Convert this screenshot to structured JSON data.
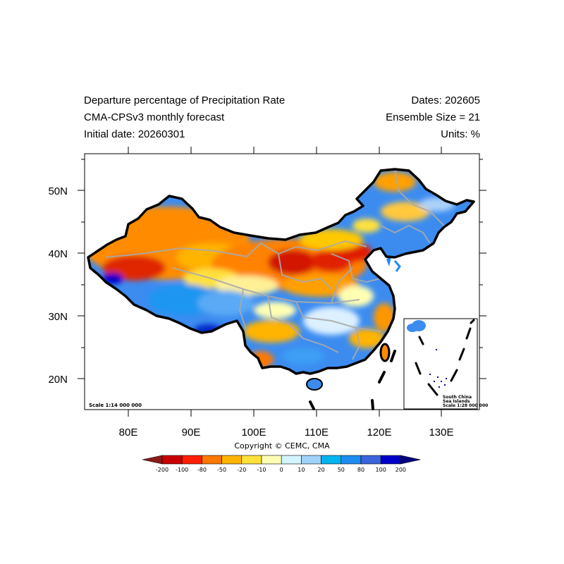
{
  "header": {
    "title_left": "Departure percentage of Precipitation Rate",
    "subtitle_left": "CMA-CPSv3 monthly forecast",
    "initial_date": "Initial date: 20260301",
    "dates": "Dates: 202605",
    "ensemble": "Ensemble Size = 21",
    "units": "Units: %"
  },
  "map": {
    "x_ticks": [
      "80E",
      "90E",
      "100E",
      "110E",
      "120E",
      "130E"
    ],
    "y_ticks": [
      "50N",
      "40N",
      "30N",
      "20N"
    ],
    "scale_label": "Scale 1:14 000 000",
    "inset": {
      "line1": "South China",
      "line2": "Sea Islands",
      "line3": "Scale 1:28 000 000"
    }
  },
  "copyright": "Copyright © CEMC, CMA",
  "colorbar": {
    "labels": [
      "-200",
      "-100",
      "-80",
      "-50",
      "-20",
      "-10",
      "0",
      "10",
      "20",
      "50",
      "80",
      "100",
      "200"
    ],
    "colors": [
      "#8b1a1a",
      "#c80000",
      "#ff1e00",
      "#ff7800",
      "#ffb400",
      "#ffe13c",
      "#ffffb4",
      "#d2f5ff",
      "#a0d2fa",
      "#00b4f0",
      "#1e8cf0",
      "#3c64dc",
      "#0000c8",
      "#000080"
    ]
  }
}
